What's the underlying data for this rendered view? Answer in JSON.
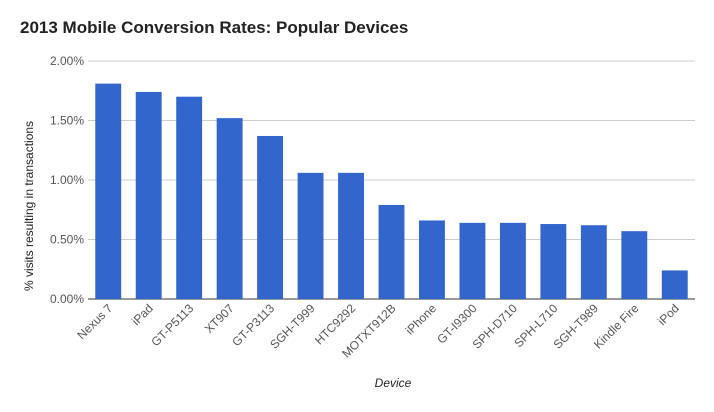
{
  "chart_data": {
    "type": "bar",
    "title": "2013 Mobile Conversion Rates: Popular Devices",
    "xlabel": "Device",
    "ylabel": "% visits resulting in transactions",
    "categories": [
      "Nexus 7",
      "iPad",
      "GT-P5113",
      "XT907",
      "GT-P3113",
      "SGH-T999",
      "HTC9292",
      "MOTXT912B",
      "iPhone",
      "GT-I9300",
      "SPH-D710",
      "SPH-L710",
      "SGH-T989",
      "Kindle Fire",
      "iPod"
    ],
    "values": [
      1.81,
      1.74,
      1.7,
      1.52,
      1.37,
      1.06,
      1.06,
      0.79,
      0.66,
      0.64,
      0.64,
      0.63,
      0.62,
      0.57,
      0.24
    ],
    "value_unit": "%",
    "yticks": [
      "0.00%",
      "0.50%",
      "1.00%",
      "1.50%",
      "2.00%"
    ],
    "ylim": [
      0,
      2.0
    ],
    "grid": true,
    "legend": "none",
    "bar_color": "#3366cc"
  }
}
